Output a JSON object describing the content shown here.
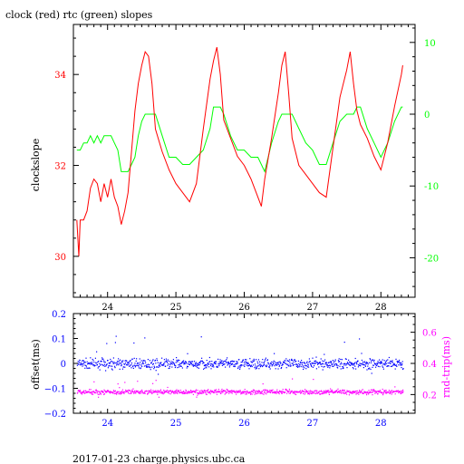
{
  "header": {
    "title": "clock (red) rtc (green) slopes"
  },
  "footer": {
    "caption": "2017-01-23 charge.physics.ubc.ca"
  },
  "colors": {
    "red": "#ff0000",
    "green": "#00ff00",
    "blue": "#0000ff",
    "magenta": "#ff00ff"
  },
  "chart_data": [
    {
      "type": "line",
      "title": "clock (red) rtc (green) slopes",
      "ylabel": "clockslope",
      "xlim": [
        23.5,
        28.5
      ],
      "ylim_left": [
        29.1,
        35.1
      ],
      "ylim_right": [
        -25.5,
        12.5
      ],
      "x_ticks": [
        24,
        25,
        26,
        27,
        28
      ],
      "y_left_ticks": [
        30,
        32,
        34
      ],
      "y_right_ticks": [
        -20,
        -10,
        0,
        10
      ],
      "series": [
        {
          "axis": "left",
          "color": "red",
          "x": [
            23.55,
            23.58,
            23.6,
            23.65,
            23.7,
            23.75,
            23.8,
            23.85,
            23.9,
            23.95,
            24.0,
            24.05,
            24.1,
            24.15,
            24.2,
            24.25,
            24.3,
            24.35,
            24.4,
            24.45,
            24.5,
            24.55,
            24.6,
            24.65,
            24.7,
            24.8,
            24.9,
            25.0,
            25.1,
            25.2,
            25.3,
            25.4,
            25.5,
            25.55,
            25.6,
            25.65,
            25.7,
            25.8,
            25.9,
            26.0,
            26.1,
            26.2,
            26.25,
            26.3,
            26.4,
            26.5,
            26.55,
            26.6,
            26.65,
            26.7,
            26.8,
            26.9,
            27.0,
            27.1,
            27.2,
            27.3,
            27.4,
            27.5,
            27.55,
            27.6,
            27.65,
            27.7,
            27.8,
            27.9,
            28.0,
            28.1,
            28.2,
            28.3,
            28.32
          ],
          "y": [
            30.8,
            30.0,
            30.8,
            30.8,
            31.0,
            31.5,
            31.7,
            31.6,
            31.2,
            31.6,
            31.3,
            31.7,
            31.3,
            31.1,
            30.7,
            31.0,
            31.4,
            32.3,
            33.2,
            33.8,
            34.2,
            34.5,
            34.4,
            33.8,
            32.8,
            32.3,
            31.9,
            31.6,
            31.4,
            31.2,
            31.6,
            32.8,
            33.9,
            34.3,
            34.6,
            34.0,
            33.0,
            32.6,
            32.2,
            32.0,
            31.7,
            31.3,
            31.1,
            31.7,
            32.6,
            33.6,
            34.2,
            34.5,
            33.6,
            32.6,
            32.0,
            31.8,
            31.6,
            31.4,
            31.3,
            32.4,
            33.5,
            34.1,
            34.5,
            33.8,
            33.2,
            32.9,
            32.6,
            32.2,
            31.9,
            32.5,
            33.3,
            34.0,
            34.2
          ]
        },
        {
          "axis": "right",
          "color": "green",
          "x": [
            23.55,
            23.6,
            23.65,
            23.7,
            23.75,
            23.8,
            23.85,
            23.9,
            23.95,
            24.0,
            24.05,
            24.1,
            24.15,
            24.2,
            24.25,
            24.3,
            24.35,
            24.4,
            24.45,
            24.5,
            24.55,
            24.6,
            24.65,
            24.7,
            24.8,
            24.9,
            25.0,
            25.1,
            25.2,
            25.3,
            25.4,
            25.5,
            25.55,
            25.6,
            25.65,
            25.7,
            25.8,
            25.9,
            26.0,
            26.1,
            26.2,
            26.3,
            26.4,
            26.5,
            26.55,
            26.6,
            26.65,
            26.7,
            26.8,
            26.9,
            27.0,
            27.1,
            27.2,
            27.3,
            27.4,
            27.5,
            27.55,
            27.6,
            27.65,
            27.7,
            27.8,
            27.9,
            28.0,
            28.1,
            28.2,
            28.3,
            28.32
          ],
          "y": [
            -5,
            -5,
            -4,
            -4,
            -3,
            -4,
            -3,
            -4,
            -3,
            -3,
            -3,
            -4,
            -5,
            -8,
            -8,
            -8,
            -7,
            -6,
            -3,
            -1,
            0,
            0,
            0,
            0,
            -3,
            -6,
            -6,
            -7,
            -7,
            -6,
            -5,
            -2,
            1,
            1,
            1,
            0,
            -3,
            -5,
            -5,
            -6,
            -6,
            -8,
            -4,
            -1,
            0,
            0,
            0,
            0,
            -2,
            -4,
            -5,
            -7,
            -7,
            -4,
            -1,
            0,
            0,
            0,
            1,
            1,
            -2,
            -4,
            -6,
            -4,
            -1,
            1,
            1
          ]
        }
      ]
    },
    {
      "type": "scatter",
      "xlabel": "",
      "ylabel_left": "offset(ms)",
      "ylabel_right": "rnd-trip(ms)",
      "xlim": [
        23.5,
        28.5
      ],
      "ylim_left": [
        -0.2,
        0.2
      ],
      "ylim_right": [
        0.08,
        0.72
      ],
      "x_ticks": [
        24,
        25,
        26,
        27,
        28
      ],
      "y_left_ticks": [
        -0.2,
        -0.1,
        0,
        0.1,
        0.2
      ],
      "y_right_ticks": [
        0.2,
        0.4,
        0.6
      ],
      "series": [
        {
          "axis": "left",
          "color": "blue",
          "x_range": [
            23.55,
            28.32
          ],
          "center": 0.0,
          "spread": 0.02
        },
        {
          "axis": "right",
          "color": "magenta",
          "x_range": [
            23.55,
            28.32
          ],
          "center": 0.22,
          "spread": 0.015
        }
      ]
    }
  ]
}
